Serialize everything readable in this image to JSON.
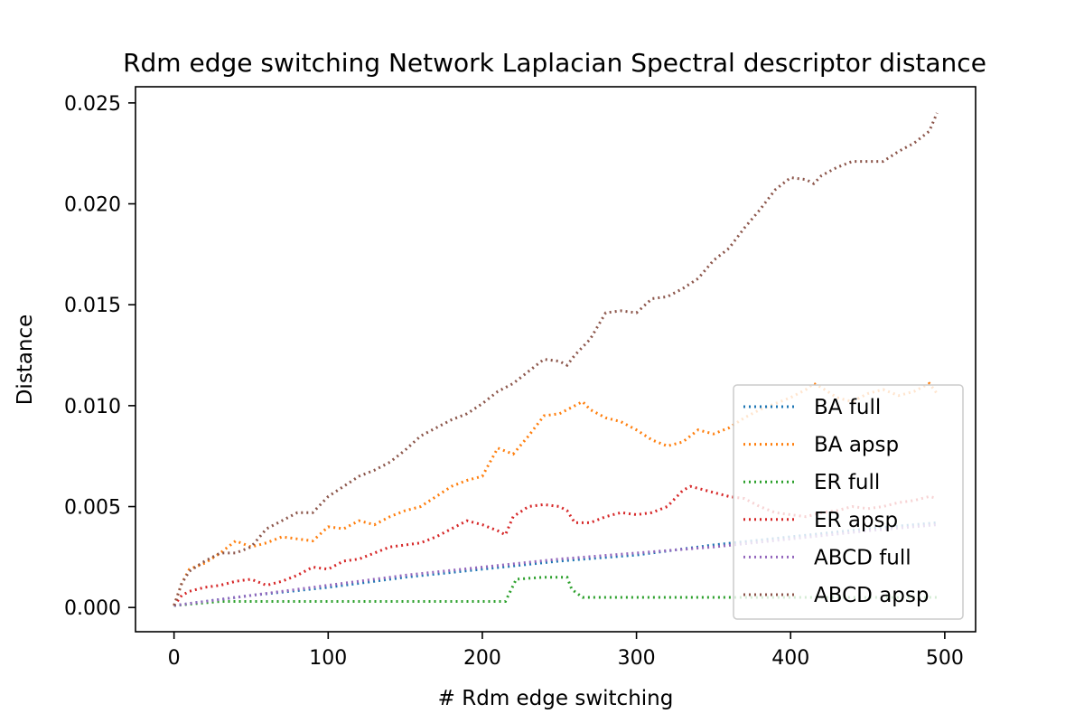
{
  "chart_data": {
    "type": "line",
    "title": "Rdm edge switching Network Laplacian Spectral descriptor distance",
    "xlabel": "# Rdm edge switching",
    "ylabel": "Distance",
    "xlim": [
      -25,
      520
    ],
    "ylim": [
      -0.0012,
      0.0258
    ],
    "xticks": [
      0,
      100,
      200,
      300,
      400,
      500
    ],
    "xtick_labels": [
      "0",
      "100",
      "200",
      "300",
      "400",
      "500"
    ],
    "yticks": [
      0.0,
      0.005,
      0.01,
      0.015,
      0.02,
      0.025
    ],
    "ytick_labels": [
      "0.000",
      "0.005",
      "0.010",
      "0.015",
      "0.020",
      "0.025"
    ],
    "grid": false,
    "legend_position": "lower right",
    "line_style": "dotted",
    "series": [
      {
        "name": "BA full",
        "color": "#1f77b4",
        "x": [
          0,
          50,
          100,
          150,
          200,
          250,
          300,
          350,
          400,
          450,
          495
        ],
        "y": [
          0.0001,
          0.0006,
          0.001,
          0.0015,
          0.0019,
          0.0023,
          0.0026,
          0.0031,
          0.0035,
          0.0039,
          0.0042
        ]
      },
      {
        "name": "BA apsp",
        "color": "#ff7f0e",
        "x": [
          0,
          5,
          10,
          20,
          30,
          40,
          50,
          60,
          70,
          80,
          90,
          100,
          110,
          120,
          130,
          140,
          150,
          160,
          170,
          180,
          190,
          200,
          210,
          220,
          230,
          240,
          250,
          260,
          265,
          270,
          280,
          290,
          300,
          310,
          320,
          330,
          340,
          350,
          360,
          370,
          380,
          390,
          400,
          410,
          415,
          420,
          430,
          440,
          450,
          460,
          470,
          480,
          490,
          495
        ],
        "y": [
          0.0001,
          0.0012,
          0.0019,
          0.0022,
          0.0027,
          0.0033,
          0.003,
          0.0032,
          0.0035,
          0.0034,
          0.0033,
          0.004,
          0.0039,
          0.0043,
          0.0041,
          0.0045,
          0.0048,
          0.005,
          0.0055,
          0.006,
          0.0063,
          0.0065,
          0.0079,
          0.0076,
          0.0085,
          0.0095,
          0.0096,
          0.01,
          0.0102,
          0.0098,
          0.0094,
          0.0092,
          0.0088,
          0.0083,
          0.008,
          0.0082,
          0.0088,
          0.0086,
          0.0089,
          0.0094,
          0.0098,
          0.0101,
          0.0104,
          0.0108,
          0.0111,
          0.0109,
          0.0104,
          0.0102,
          0.0106,
          0.0108,
          0.0105,
          0.0107,
          0.0111,
          0.0106
        ]
      },
      {
        "name": "ER full",
        "color": "#2ca02c",
        "x": [
          0,
          30,
          60,
          90,
          120,
          150,
          180,
          210,
          215,
          222,
          240,
          255,
          258,
          265,
          300,
          330,
          360,
          400,
          440,
          470,
          495
        ],
        "y": [
          0.0001,
          0.0003,
          0.0003,
          0.0003,
          0.0003,
          0.0003,
          0.0003,
          0.0003,
          0.0003,
          0.0014,
          0.0015,
          0.0015,
          0.0009,
          0.0005,
          0.0005,
          0.0005,
          0.0005,
          0.0005,
          0.0005,
          0.0005,
          0.0005
        ]
      },
      {
        "name": "ER apsp",
        "color": "#d62728",
        "x": [
          0,
          5,
          10,
          20,
          30,
          40,
          50,
          60,
          70,
          80,
          90,
          100,
          110,
          120,
          130,
          140,
          150,
          160,
          170,
          180,
          190,
          200,
          210,
          215,
          220,
          230,
          240,
          250,
          255,
          260,
          270,
          280,
          290,
          300,
          310,
          320,
          330,
          335,
          340,
          350,
          360,
          370,
          380,
          390,
          400,
          410,
          420,
          430,
          440,
          450,
          460,
          470,
          480,
          490,
          495
        ],
        "y": [
          0.0001,
          0.0006,
          0.0008,
          0.001,
          0.0011,
          0.0013,
          0.0014,
          0.0011,
          0.0013,
          0.0016,
          0.002,
          0.0019,
          0.0023,
          0.0024,
          0.0027,
          0.003,
          0.0031,
          0.0032,
          0.0035,
          0.0039,
          0.0043,
          0.0041,
          0.0038,
          0.0036,
          0.0045,
          0.005,
          0.0051,
          0.005,
          0.0048,
          0.0042,
          0.0042,
          0.0045,
          0.0047,
          0.0046,
          0.0047,
          0.005,
          0.0058,
          0.006,
          0.0059,
          0.0057,
          0.0055,
          0.0054,
          0.005,
          0.0047,
          0.0046,
          0.0045,
          0.0047,
          0.0048,
          0.005,
          0.0049,
          0.005,
          0.0052,
          0.0053,
          0.0055,
          0.0054
        ]
      },
      {
        "name": "ABCD full",
        "color": "#9467bd",
        "x": [
          0,
          50,
          100,
          150,
          200,
          250,
          300,
          350,
          400,
          450,
          495
        ],
        "y": [
          0.0001,
          0.0006,
          0.0011,
          0.0016,
          0.002,
          0.0024,
          0.0027,
          0.003,
          0.0034,
          0.0038,
          0.0041
        ]
      },
      {
        "name": "ABCD apsp",
        "color": "#8c564b",
        "x": [
          0,
          5,
          10,
          20,
          30,
          40,
          50,
          60,
          70,
          80,
          90,
          100,
          110,
          120,
          130,
          140,
          150,
          160,
          170,
          180,
          190,
          200,
          210,
          220,
          230,
          240,
          250,
          255,
          260,
          270,
          280,
          290,
          300,
          310,
          320,
          330,
          340,
          350,
          360,
          370,
          380,
          390,
          400,
          410,
          415,
          420,
          430,
          440,
          450,
          460,
          470,
          480,
          490,
          495
        ],
        "y": [
          0.0001,
          0.0012,
          0.0018,
          0.0023,
          0.0027,
          0.0027,
          0.003,
          0.0039,
          0.0043,
          0.0047,
          0.0047,
          0.0055,
          0.006,
          0.0065,
          0.0068,
          0.0072,
          0.0078,
          0.0085,
          0.0089,
          0.0093,
          0.0096,
          0.0101,
          0.0107,
          0.0111,
          0.0117,
          0.0123,
          0.0122,
          0.012,
          0.0125,
          0.0133,
          0.0146,
          0.0147,
          0.0146,
          0.0153,
          0.0154,
          0.0158,
          0.0163,
          0.0172,
          0.0178,
          0.0188,
          0.0197,
          0.0207,
          0.0213,
          0.0212,
          0.021,
          0.0214,
          0.0218,
          0.0221,
          0.0221,
          0.0221,
          0.0226,
          0.023,
          0.0236,
          0.0245
        ]
      }
    ]
  }
}
